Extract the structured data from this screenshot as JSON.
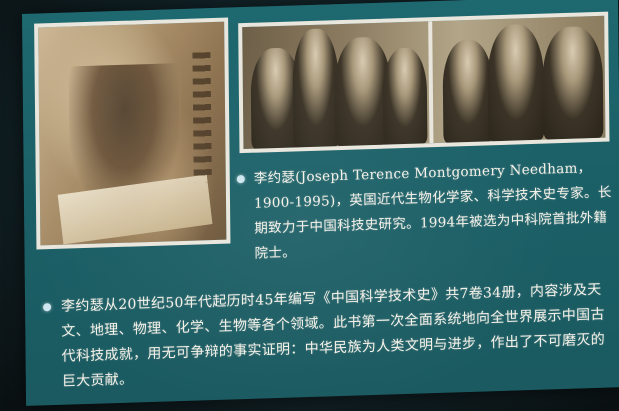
{
  "slide": {
    "paragraph_1": "李约瑟(Joseph Terence Montgomery Needham，1900-1995)，英国近代生物化学家、科学技术史专家。长期致力于中国科技史研究。1994年被选为中科院首批外籍院士。",
    "paragraph_2": "李约瑟从20世纪50年代起历时45年编写《中国科学技术史》共7卷34册，内容涉及天文、地理、物理、化学、生物等各个领域。此书第一次全面系统地向全世界展示中国古代科技成就，用无可争辩的事实证明：中华民族为人类文明与进步，作出了不可磨灭的巨大贡献。"
  },
  "colors": {
    "slide_background": "#1b5f66",
    "text": "#f4f1e8",
    "bullet": "#cfe6f0"
  },
  "icons": [
    "bullet-dot"
  ]
}
